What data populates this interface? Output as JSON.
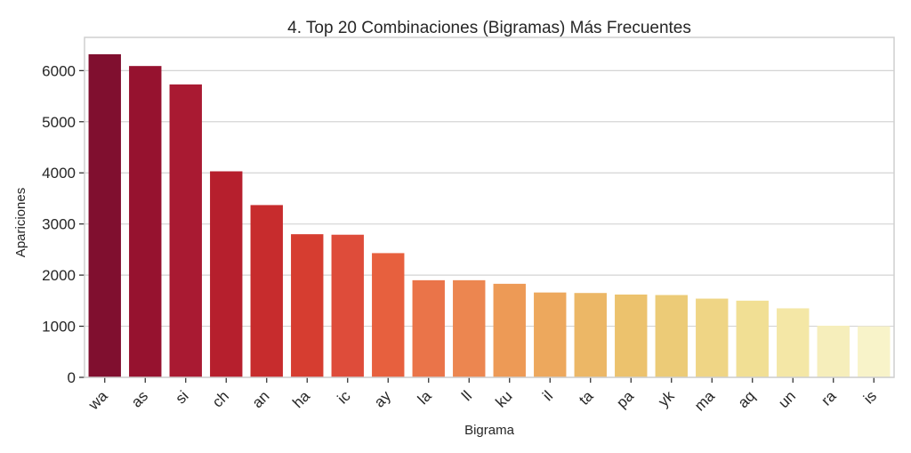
{
  "chart_data": {
    "type": "bar",
    "title": "4. Top 20 Combinaciones (Bigramas) Más Frecuentes",
    "xlabel": "Bigrama",
    "ylabel": "Apariciones",
    "categories": [
      "wa",
      "as",
      "si",
      "ch",
      "an",
      "ha",
      "ic",
      "ay",
      "la",
      "ll",
      "ku",
      "il",
      "ta",
      "pa",
      "yk",
      "ma",
      "aq",
      "un",
      "ra",
      "is"
    ],
    "values": [
      6320,
      6090,
      5730,
      4030,
      3370,
      2800,
      2790,
      2430,
      1900,
      1900,
      1830,
      1660,
      1650,
      1620,
      1610,
      1540,
      1500,
      1350,
      1010,
      1000
    ],
    "yticks": [
      0,
      1000,
      2000,
      3000,
      4000,
      5000,
      6000
    ],
    "ylim": [
      0,
      6650
    ],
    "grid": "horizontal",
    "colors": [
      "#800f2f",
      "#96122f",
      "#a91a32",
      "#b61f2d",
      "#c72c2d",
      "#d63d30",
      "#de4c3a",
      "#e7603e",
      "#ea7449",
      "#ec8650",
      "#ed9a56",
      "#eda85d",
      "#ecb766",
      "#ecc26d",
      "#eccb77",
      "#efd585",
      "#f1df94",
      "#f4e7a6",
      "#f6eebb",
      "#f8f3c9"
    ]
  }
}
